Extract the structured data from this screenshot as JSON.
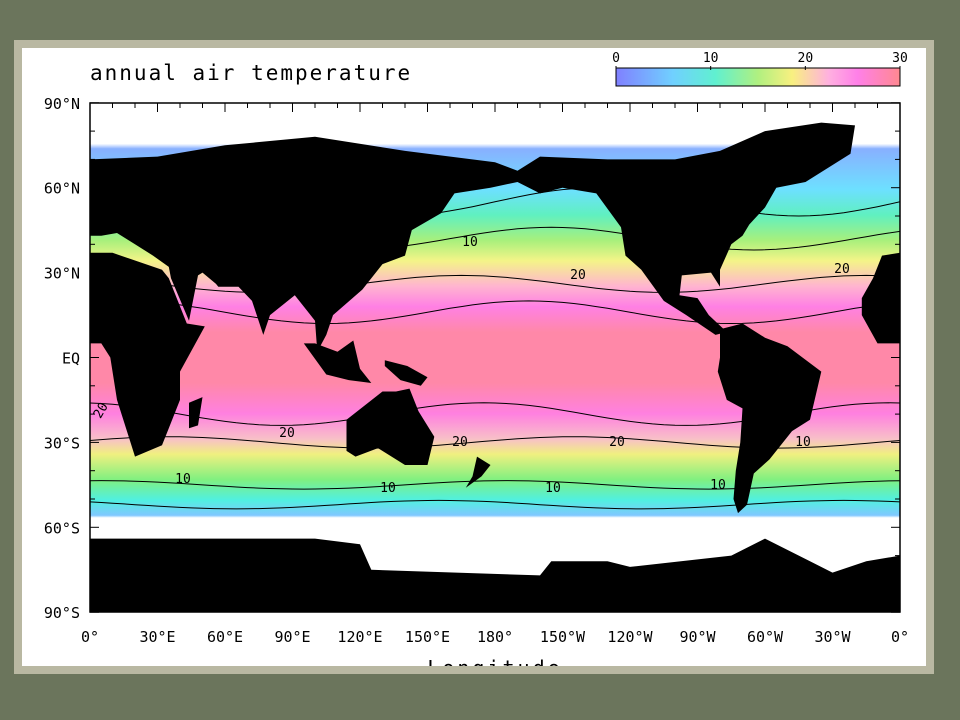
{
  "title": "annual air temperature",
  "colorbar": {
    "ticks": [
      0,
      10,
      20,
      30
    ]
  },
  "latitude_labels": [
    "90°N",
    "60°N",
    "30°N",
    "EQ",
    "30°S",
    "60°S",
    "90°S"
  ],
  "longitude_labels": [
    "0°",
    "30°E",
    "60°E",
    "90°E",
    "120°E",
    "150°E",
    "180°",
    "150°W",
    "120°W",
    "90°W",
    "60°W",
    "30°W",
    "0°"
  ],
  "x_axis_label": "Longitude",
  "contour_labels": [
    "10",
    "20",
    "20",
    "20",
    "20",
    "20",
    "20",
    "10",
    "10",
    "10",
    "10",
    "10"
  ]
}
